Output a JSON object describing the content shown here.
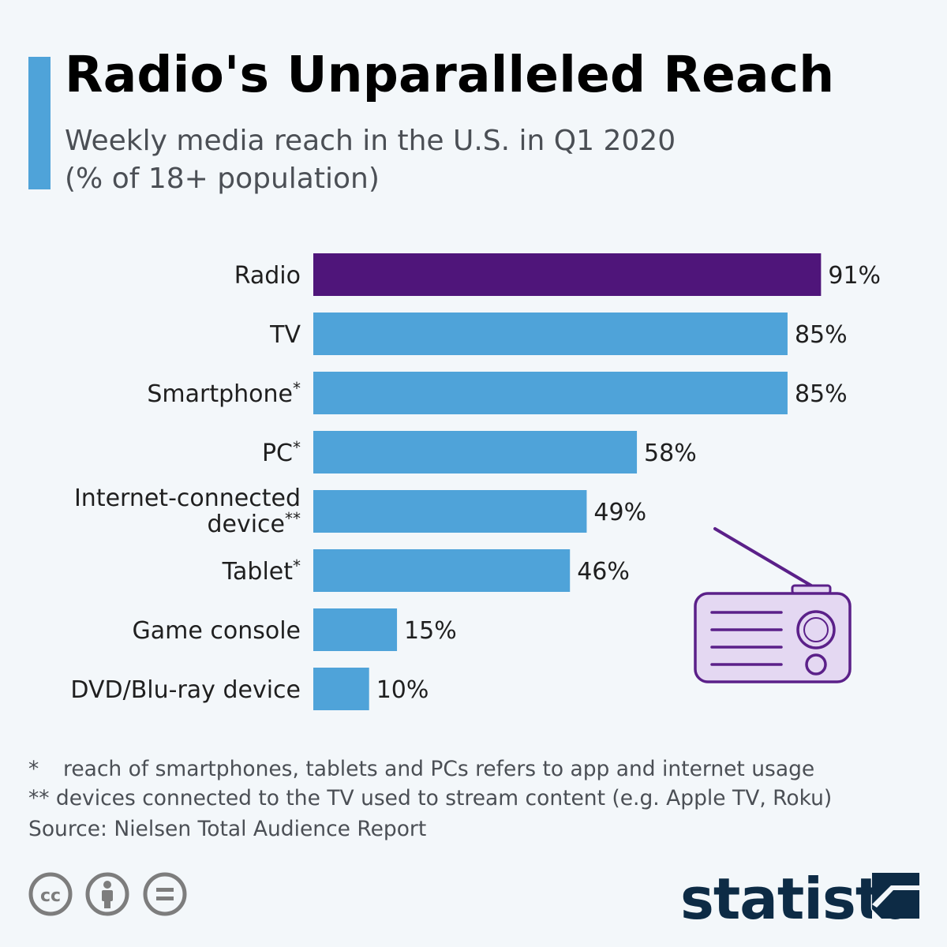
{
  "header": {
    "title": "Radio's Unparalleled Reach",
    "subtitle_line1": "Weekly media reach in the U.S. in Q1 2020",
    "subtitle_line2": "(% of 18+ population)"
  },
  "colors": {
    "highlight": "#4f157a",
    "bar": "#4fa3d9",
    "accent": "#4fa3d9",
    "brand": "#0d2b45",
    "illustration_fill": "#e4d8f2",
    "illustration_stroke": "#5b2089"
  },
  "chart_data": {
    "type": "bar",
    "orientation": "horizontal",
    "categories": [
      [
        "Radio"
      ],
      [
        "TV"
      ],
      [
        "Smartphone*"
      ],
      [
        "PC*"
      ],
      [
        "Internet-connected",
        "device**"
      ],
      [
        "Tablet*"
      ],
      [
        "Game console"
      ],
      [
        "DVD/Blu-ray device"
      ]
    ],
    "values": [
      91,
      85,
      85,
      58,
      49,
      46,
      15,
      10
    ],
    "value_labels": [
      "91%",
      "85%",
      "85%",
      "58%",
      "49%",
      "46%",
      "15%",
      "10%"
    ],
    "highlighted_index": 0,
    "xlim": [
      0,
      100
    ],
    "grid": false,
    "legend": "none"
  },
  "footnotes": {
    "note1_marker": "*",
    "note1_text": "reach of smartphones, tablets and PCs refers to app and internet usage",
    "note2": "** devices connected to the TV used to stream content (e.g. Apple TV, Roku)",
    "source": "Source: Nielsen Total Audience Report"
  },
  "footer": {
    "brand": "statista",
    "icons": [
      "creative-commons-icon",
      "attribution-icon",
      "no-derivatives-icon"
    ]
  }
}
